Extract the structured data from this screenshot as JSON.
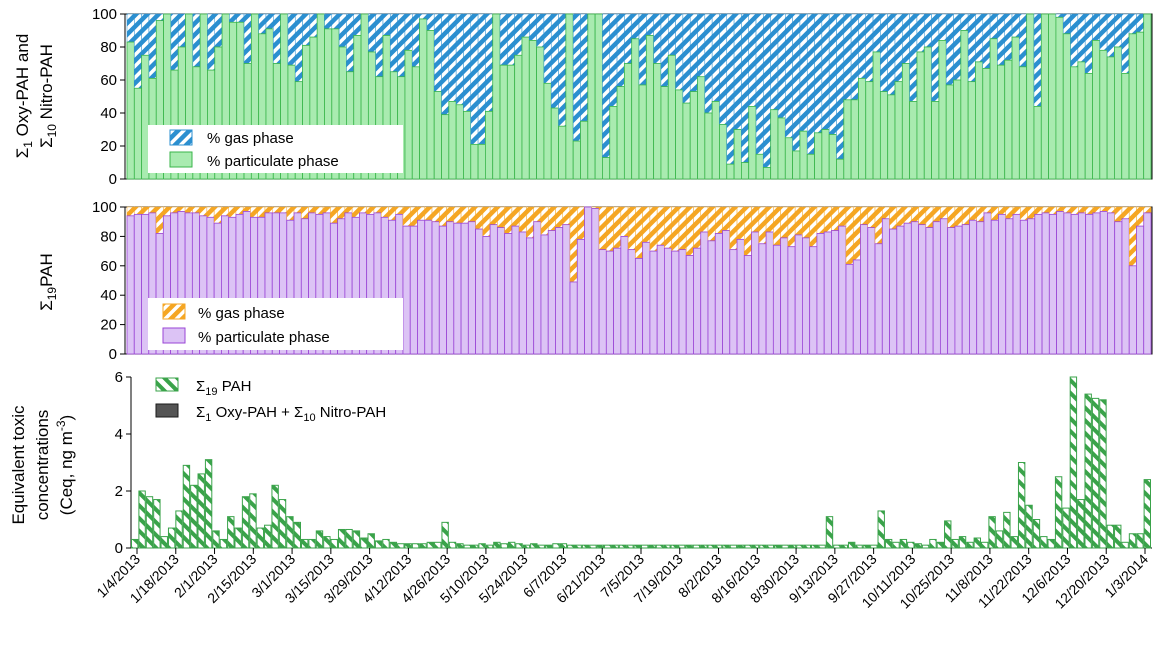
{
  "chart_data": [
    {
      "type": "bar",
      "ylabel_line1": "Σ1 Oxy-PAH and",
      "ylabel_line2": "Σ10 Nitro-PAH",
      "ylim": [
        0,
        100
      ],
      "yticks": [
        0,
        20,
        40,
        60,
        80,
        100
      ],
      "legend_placement": "bottom-left",
      "series": [
        {
          "name": "% gas phase",
          "color": "#2b8fd0",
          "pattern": "diagonal-hatch"
        },
        {
          "name": "% particulate phase",
          "color": "#a9ebb0",
          "edge": "#39b54a",
          "values": [
            83,
            55,
            75,
            61,
            96,
            100,
            66,
            80,
            100,
            68,
            100,
            66,
            80,
            100,
            95,
            95,
            70,
            100,
            88,
            91,
            70,
            100,
            69,
            59,
            81,
            86,
            100,
            91,
            91,
            80,
            65,
            87,
            100,
            77,
            62,
            87,
            65,
            62,
            78,
            68,
            97,
            90,
            53,
            39,
            47,
            45,
            41,
            21,
            21,
            41,
            100,
            69,
            69,
            75,
            86,
            84,
            80,
            58,
            43,
            32,
            100,
            23,
            35,
            100,
            100,
            13,
            44,
            56,
            70,
            85,
            57,
            87,
            70,
            56,
            75,
            54,
            46,
            53,
            62,
            40,
            47,
            33,
            9,
            30,
            10,
            44,
            15,
            7,
            42,
            37,
            25,
            17,
            29,
            15,
            28,
            30,
            27,
            12,
            48,
            48,
            61,
            59,
            77,
            53,
            51,
            59,
            70,
            47,
            77,
            80,
            47,
            84,
            57,
            60,
            90,
            59,
            71,
            67,
            85,
            69,
            72,
            86,
            68,
            100,
            44,
            100,
            100,
            98,
            88,
            68,
            71,
            64,
            84,
            78,
            74,
            80,
            64,
            88,
            89,
            100
          ]
        }
      ],
      "grid": false
    },
    {
      "type": "bar",
      "ylabel": "Σ19PAH",
      "ylim": [
        0,
        100
      ],
      "yticks": [
        0,
        20,
        40,
        60,
        80,
        100
      ],
      "legend_placement": "bottom-left",
      "series": [
        {
          "name": "% gas phase",
          "color": "#f5a623",
          "pattern": "diagonal-hatch"
        },
        {
          "name": "% particulate phase",
          "color": "#dcc3f5",
          "edge": "#9a45d6",
          "values": [
            94,
            95,
            95,
            96,
            82,
            94,
            96,
            97,
            96,
            96,
            94,
            93,
            89,
            94,
            93,
            95,
            97,
            93,
            93,
            96,
            96,
            96,
            91,
            96,
            92,
            96,
            95,
            96,
            89,
            92,
            96,
            93,
            96,
            95,
            96,
            93,
            91,
            95,
            87,
            87,
            91,
            91,
            90,
            87,
            90,
            89,
            89,
            90,
            85,
            80,
            88,
            86,
            82,
            87,
            83,
            79,
            90,
            81,
            84,
            86,
            88,
            49,
            78,
            100,
            99,
            71,
            70,
            72,
            80,
            71,
            65,
            76,
            70,
            74,
            72,
            70,
            71,
            67,
            72,
            83,
            77,
            82,
            84,
            71,
            78,
            67,
            83,
            75,
            83,
            74,
            79,
            73,
            81,
            79,
            73,
            82,
            83,
            84,
            87,
            61,
            64,
            88,
            86,
            75,
            92,
            85,
            87,
            89,
            90,
            88,
            86,
            90,
            92,
            86,
            87,
            88,
            91,
            90,
            96,
            91,
            95,
            92,
            95,
            91,
            92,
            95,
            96,
            95,
            97,
            96,
            95,
            96,
            95,
            96,
            97,
            96,
            90,
            92,
            60,
            87,
            96
          ]
        }
      ],
      "grid": false
    },
    {
      "type": "bar",
      "ylabel_line1": "Equivalent toxic",
      "ylabel_line2": "concentrations",
      "ylabel_line3": "(Ceq, ng m",
      "ylabel_sup": "-3",
      "ylabel_close": ")",
      "ylim": [
        0,
        6
      ],
      "yticks": [
        0,
        2,
        4,
        6
      ],
      "legend_placement": "top-left",
      "series": [
        {
          "name": "Σ19 PAH",
          "color": "#3aa34a",
          "pattern": "diagonal-hatch",
          "values": [
            0.3,
            2.0,
            1.8,
            1.7,
            0.4,
            0.7,
            1.3,
            2.9,
            2.2,
            2.6,
            3.1,
            0.6,
            0.3,
            1.1,
            0.7,
            1.8,
            1.9,
            0.7,
            0.8,
            2.2,
            1.7,
            1.1,
            0.9,
            0.3,
            0.3,
            0.6,
            0.4,
            0.3,
            0.65,
            0.65,
            0.6,
            0.35,
            0.5,
            0.25,
            0.3,
            0.2,
            0.15,
            0.15,
            0.15,
            0.15,
            0.2,
            0.2,
            0.9,
            0.2,
            0.15,
            0.1,
            0.1,
            0.15,
            0.1,
            0.2,
            0.15,
            0.2,
            0.15,
            0.1,
            0.15,
            0.1,
            0.1,
            0.15,
            0.15,
            0.1,
            0.1,
            0.1,
            0.1,
            0.1,
            0.1,
            0.1,
            0.1,
            0.1,
            0.1,
            0.1,
            0.1,
            0.1,
            0.1,
            0.1,
            0.1,
            0.1,
            0.1,
            0.1,
            0.1,
            0.1,
            0.1,
            0.1,
            0.1,
            0.1,
            0.1,
            0.1,
            0.1,
            0.1,
            0.1,
            0.1,
            0.1,
            0.1,
            0.1,
            0.1,
            1.1,
            0.1,
            0.1,
            0.2,
            0.1,
            0.1,
            0.1,
            1.3,
            0.3,
            0.2,
            0.3,
            0.2,
            0.15,
            0.1,
            0.3,
            0.2,
            0.95,
            0.3,
            0.4,
            0.2,
            0.35,
            0.2,
            1.1,
            0.6,
            1.25,
            0.4,
            3.0,
            1.5,
            1.0,
            0.4,
            0.3,
            2.5,
            1.4,
            6.0,
            1.7,
            5.4,
            5.25,
            5.2,
            0.8,
            0.8,
            0.2,
            0.5,
            0.5,
            2.4
          ]
        },
        {
          "name": "Σ1 Oxy-PAH + Σ10 Nitro-PAH",
          "color": "#555555",
          "edge": "#1a1a1a"
        }
      ],
      "grid": false
    }
  ],
  "x_tick_labels": [
    "1/4/2013",
    "1/18/2013",
    "2/1/2013",
    "2/15/2013",
    "3/1/2013",
    "3/15/2013",
    "3/29/2013",
    "4/12/2013",
    "4/26/2013",
    "5/10/2013",
    "5/24/2013",
    "6/7/2013",
    "6/21/2013",
    "7/5/2013",
    "7/19/2013",
    "8/2/2013",
    "8/16/2013",
    "8/30/2013",
    "9/13/2013",
    "9/27/2013",
    "10/11/2013",
    "10/25/2013",
    "11/8/2013",
    "11/22/2013",
    "12/6/2013",
    "12/20/2013",
    "1/3/2014"
  ],
  "legend": {
    "p1_gas": "% gas phase",
    "p1_part": "% particulate phase",
    "p2_gas": "% gas phase",
    "p2_part": "% particulate phase",
    "p3_pah_prefix": "Σ",
    "p3_pah_sub": "19",
    "p3_pah_suffix": " PAH",
    "p3_oxy_a": "Σ",
    "p3_oxy_sub1": "1",
    "p3_oxy_b": " Oxy-PAH + Σ",
    "p3_oxy_sub2": "10",
    "p3_oxy_c": " Nitro-PAH"
  },
  "axis_labels": {
    "p1_line1_a": "Σ",
    "p1_line1_sub": "1",
    "p1_line1_b": " Oxy-PAH and",
    "p1_line2_a": "Σ",
    "p1_line2_sub": "10",
    "p1_line2_b": " Nitro-PAH",
    "p2_a": "Σ",
    "p2_sub": "19",
    "p2_b": "PAH",
    "p3_line1": "Equivalent toxic",
    "p3_line2": "concentrations",
    "p3_line3": "(Ceq, ng m",
    "p3_sup": "-3",
    "p3_close": ")"
  }
}
